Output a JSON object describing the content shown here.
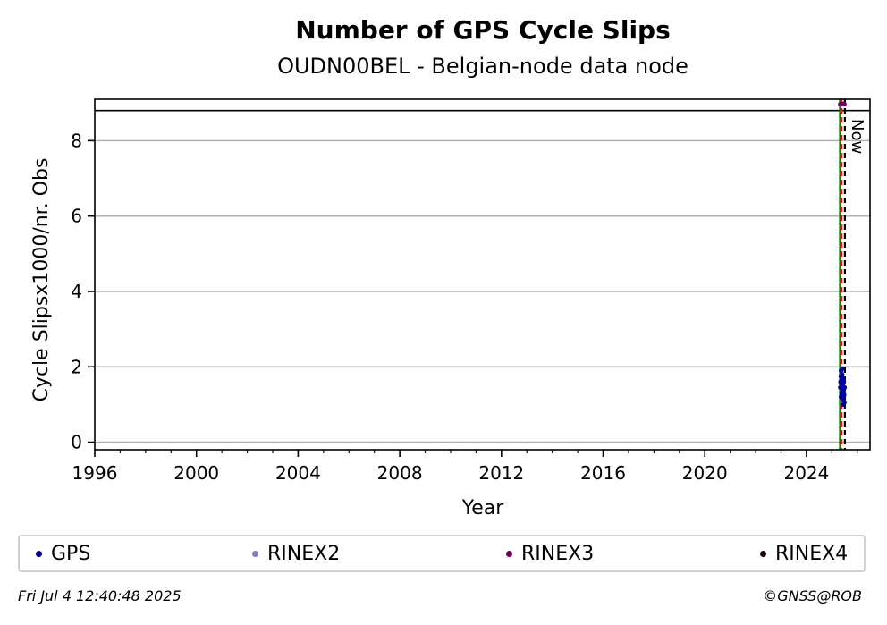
{
  "chart_data": {
    "type": "scatter",
    "title": "Number of GPS Cycle Slips",
    "subtitle": "OUDN00BEL - Belgian-node data node",
    "xlabel": "Year",
    "ylabel": "Cycle Slipsx1000/nr. Obs",
    "xlim": [
      1996,
      2026.5
    ],
    "ylim": [
      -0.2,
      9.1
    ],
    "x_ticks": [
      1996,
      2000,
      2004,
      2008,
      2012,
      2016,
      2020,
      2024
    ],
    "y_ticks": [
      0,
      2,
      4,
      6,
      8
    ],
    "grid": "horizontal",
    "upper_limit_line": 8.8,
    "vertical_lines": [
      {
        "x": 2025.32,
        "color": "#008000",
        "style": "solid"
      },
      {
        "x": 2025.38,
        "color": "#ff0000",
        "style": "dashed"
      },
      {
        "x": 2025.51,
        "color": "#000000",
        "style": "dashed",
        "label": "Now"
      }
    ],
    "series": [
      {
        "name": "GPS",
        "color": "#0000a0",
        "x": [
          2025.33,
          2025.34,
          2025.35,
          2025.36,
          2025.37,
          2025.38,
          2025.39,
          2025.4,
          2025.41,
          2025.42,
          2025.43,
          2025.44,
          2025.45,
          2025.46,
          2025.47,
          2025.48,
          2025.49,
          2025.5,
          2025.36,
          2025.41,
          2025.44,
          2025.47
        ],
        "y": [
          1.45,
          1.6,
          1.75,
          1.9,
          1.55,
          1.3,
          1.65,
          1.8,
          1.4,
          1.2,
          1.5,
          1.7,
          1.35,
          1.1,
          1.6,
          1.25,
          1.05,
          1.45,
          1.2,
          1.95,
          1.0,
          1.3
        ]
      },
      {
        "name": "RINEX2",
        "color": "#7b7bbd",
        "x": [],
        "y": []
      },
      {
        "name": "RINEX3",
        "color": "#6b005f",
        "x": [
          2025.33,
          2025.37,
          2025.41,
          2025.45,
          2025.49
        ],
        "y": [
          8.97,
          8.98,
          8.97,
          8.98,
          8.97
        ]
      },
      {
        "name": "RINEX4",
        "color": "#1a0010",
        "x": [],
        "y": []
      }
    ]
  },
  "legend": {
    "items": [
      {
        "label": "GPS",
        "color": "#0000a0"
      },
      {
        "label": "RINEX2",
        "color": "#7b7bbd"
      },
      {
        "label": "RINEX3",
        "color": "#6b005f"
      },
      {
        "label": "RINEX4",
        "color": "#1a0010"
      }
    ]
  },
  "footer": {
    "timestamp": "Fri Jul  4 12:40:48 2025",
    "copyright": "©GNSS@ROB"
  }
}
